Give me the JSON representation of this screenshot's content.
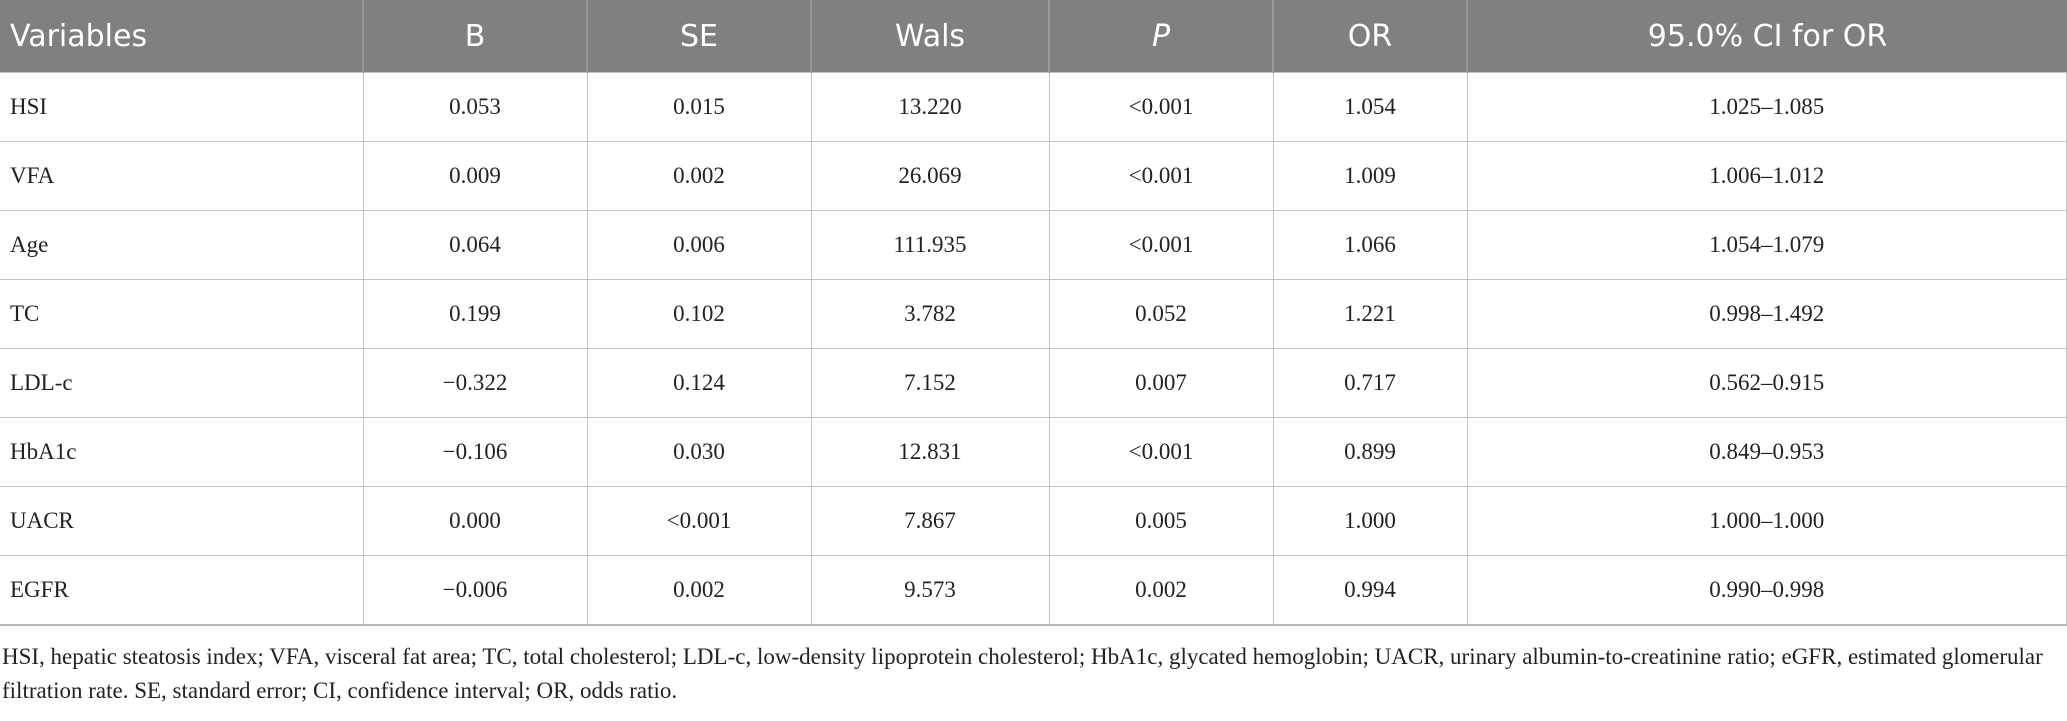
{
  "table": {
    "headers": [
      "Variables",
      "B",
      "SE",
      "Wals",
      "P",
      "OR",
      "95.0% CI for OR"
    ],
    "rows": [
      [
        "HSI",
        "0.053",
        "0.015",
        "13.220",
        "<0.001",
        "1.054",
        "1.025–1.085"
      ],
      [
        "VFA",
        "0.009",
        "0.002",
        "26.069",
        "<0.001",
        "1.009",
        "1.006–1.012"
      ],
      [
        "Age",
        "0.064",
        "0.006",
        "111.935",
        "<0.001",
        "1.066",
        "1.054–1.079"
      ],
      [
        "TC",
        "0.199",
        "0.102",
        "3.782",
        "0.052",
        "1.221",
        "0.998–1.492"
      ],
      [
        "LDL-c",
        "−0.322",
        "0.124",
        "7.152",
        "0.007",
        "0.717",
        "0.562–0.915"
      ],
      [
        "HbA1c",
        "−0.106",
        "0.030",
        "12.831",
        "<0.001",
        "0.899",
        "0.849–0.953"
      ],
      [
        "UACR",
        "0.000",
        "<0.001",
        "7.867",
        "0.005",
        "1.000",
        "1.000–1.000"
      ],
      [
        "EGFR",
        "−0.006",
        "0.002",
        "9.573",
        "0.002",
        "0.994",
        "0.990–0.998"
      ]
    ]
  },
  "footnote": "HSI, hepatic steatosis index; VFA, visceral fat area; TC, total cholesterol; LDL-c, low-density lipoprotein cholesterol; HbA1c, glycated hemoglobin; UACR, urinary albumin-to-creatinine ratio; eGFR, estimated glomerular filtration rate. SE, standard error; CI, confidence interval; OR, odds ratio.",
  "colors": {
    "header_bg": "#808080",
    "header_text": "#ffffff",
    "grid": "#c4c4c4"
  }
}
